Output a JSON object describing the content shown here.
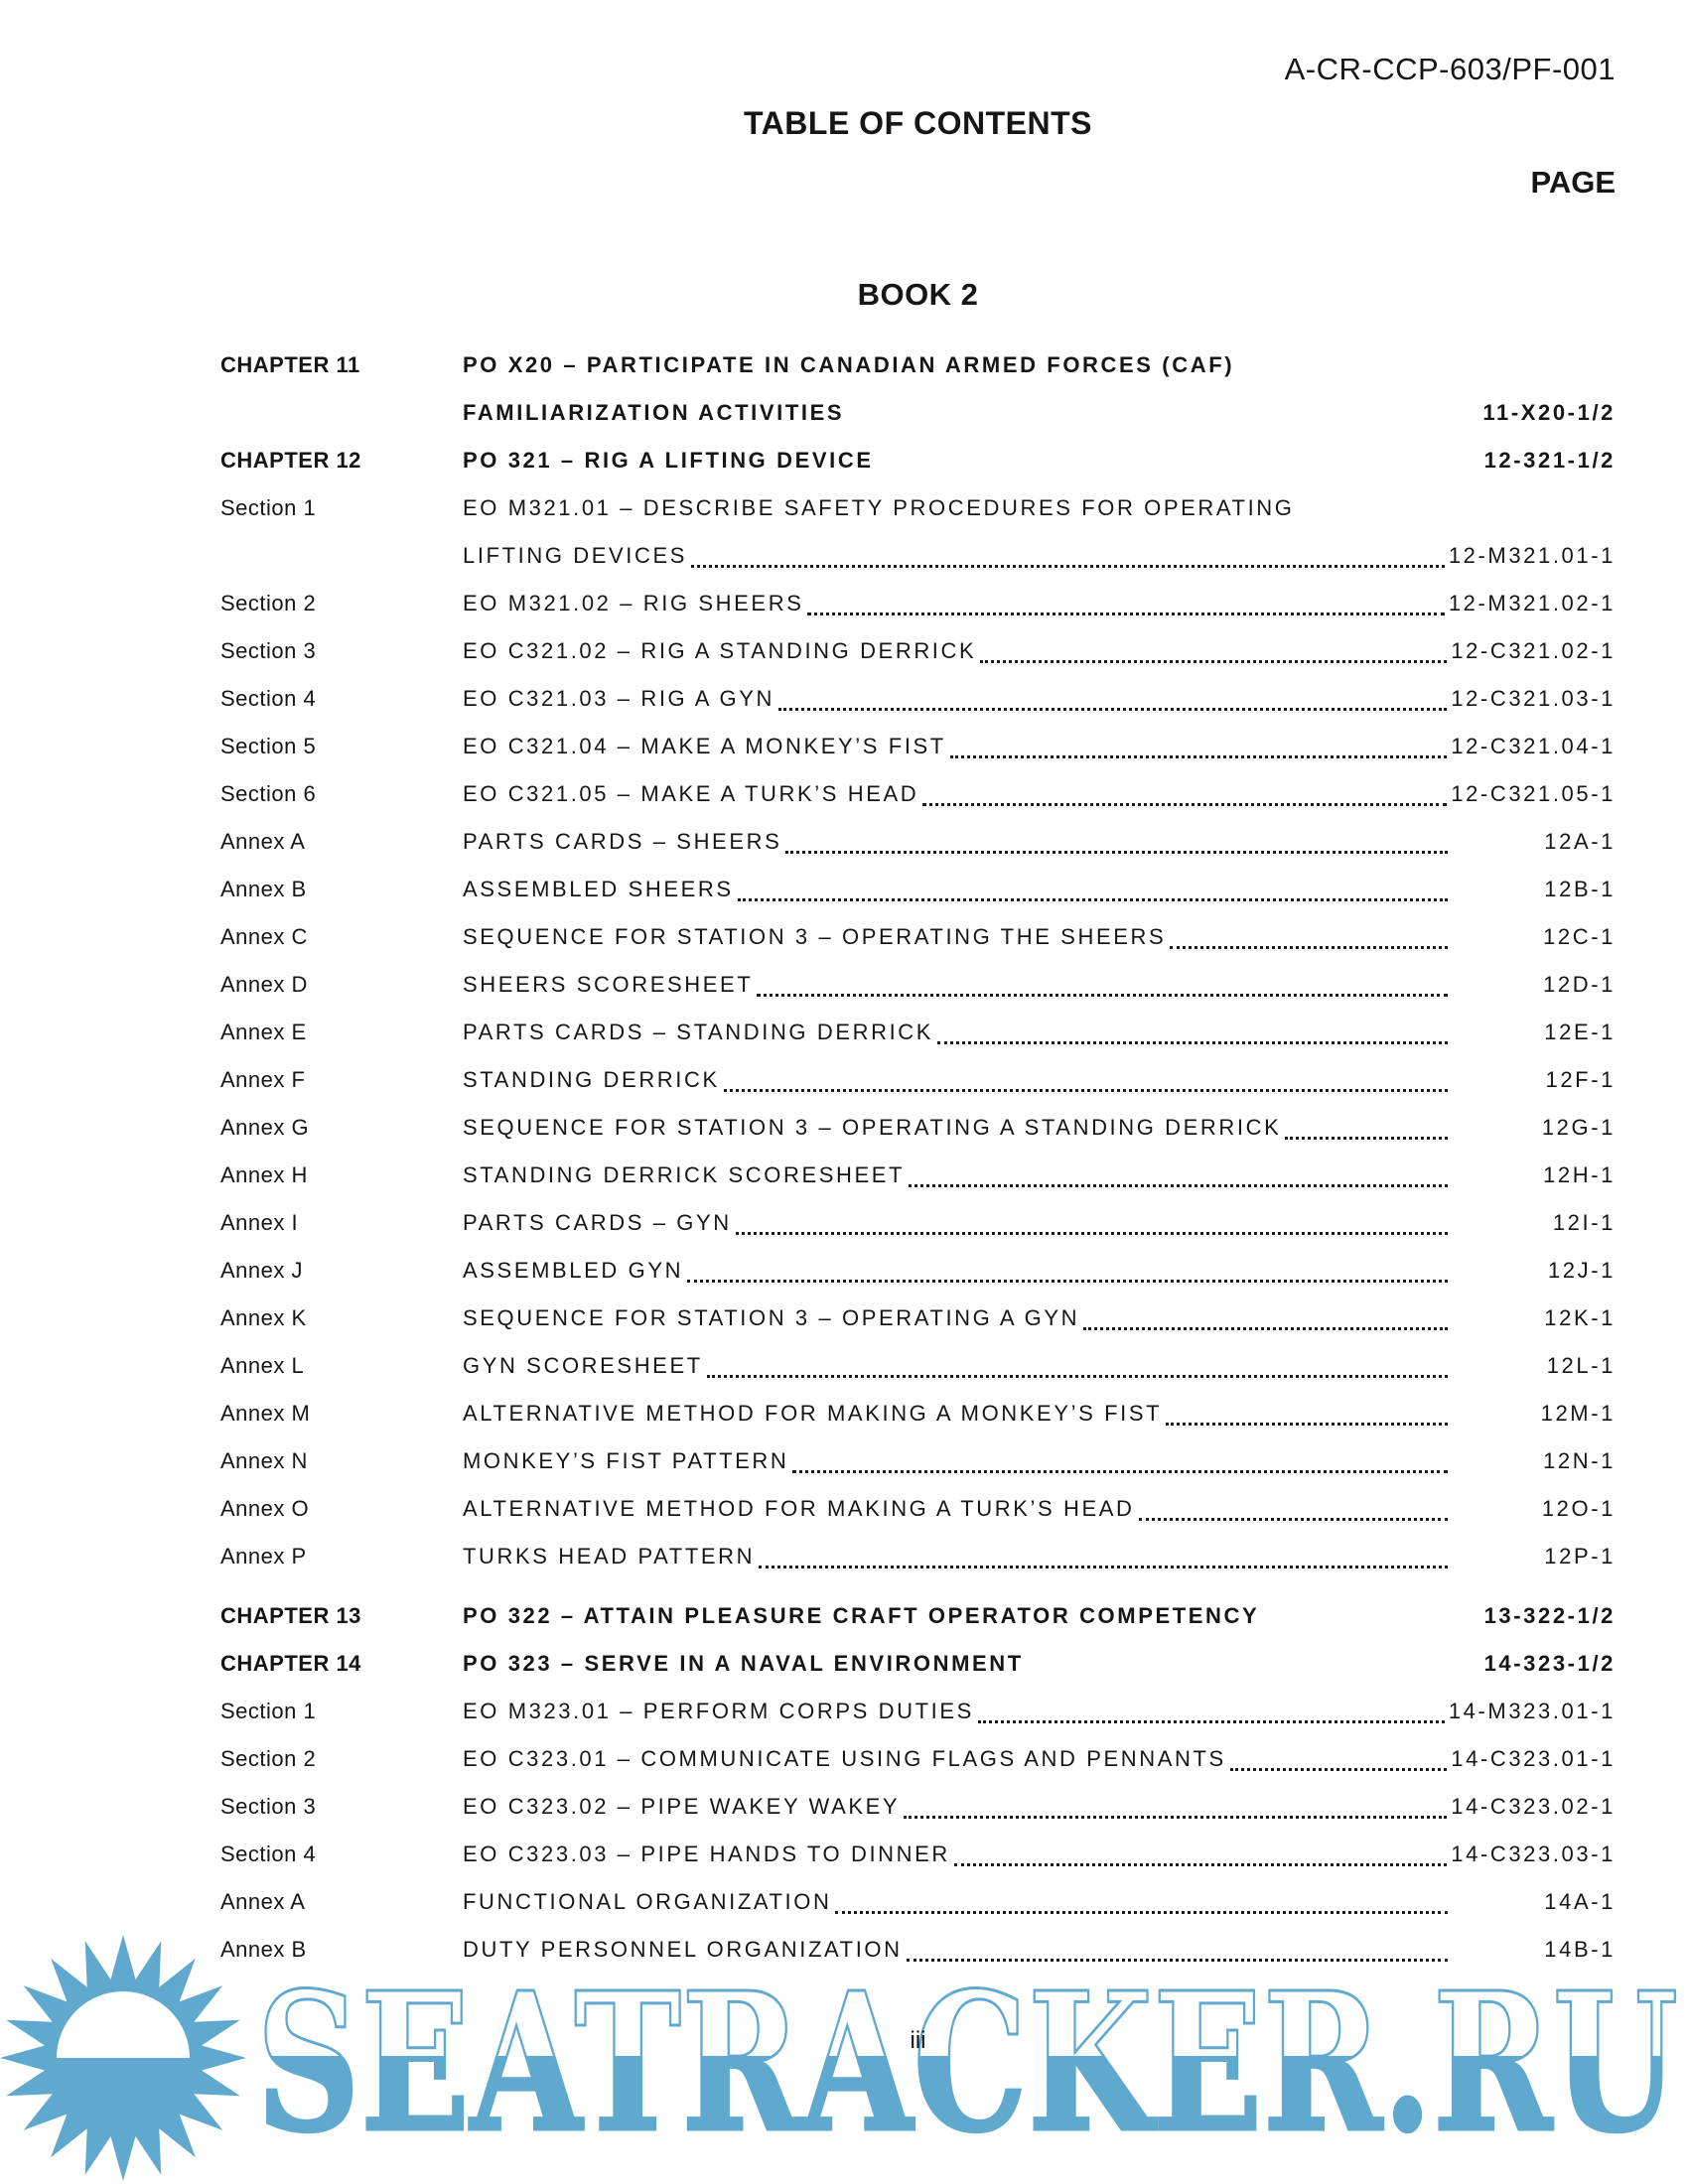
{
  "header": {
    "doc_ref": "A-CR-CCP-603/PF-001",
    "title": "TABLE OF CONTENTS",
    "page_column_label": "PAGE"
  },
  "book_heading": "BOOK 2",
  "toc": {
    "rows": [
      {
        "type": "chapter",
        "label": "CHAPTER 11",
        "lines": [
          "PO X20 – PARTICIPATE IN CANADIAN ARMED FORCES (CAF)",
          "FAMILIARIZATION ACTIVITIES"
        ],
        "page": "11-X20-1/2",
        "leader": false
      },
      {
        "type": "chapter",
        "label": "CHAPTER 12",
        "lines": [
          "PO 321 – RIG A LIFTING DEVICE"
        ],
        "page": "12-321-1/2",
        "leader": false
      },
      {
        "type": "section",
        "label": "Section 1",
        "lines": [
          "EO M321.01 – DESCRIBE SAFETY PROCEDURES FOR OPERATING",
          "LIFTING DEVICES"
        ],
        "page": "12-M321.01-1",
        "leader": true
      },
      {
        "type": "section",
        "label": "Section 2",
        "lines": [
          "EO M321.02 – RIG SHEERS"
        ],
        "page": "12-M321.02-1",
        "leader": true
      },
      {
        "type": "section",
        "label": "Section 3",
        "lines": [
          "EO C321.02 – RIG A STANDING DERRICK"
        ],
        "page": "12-C321.02-1",
        "leader": true
      },
      {
        "type": "section",
        "label": "Section 4",
        "lines": [
          "EO C321.03 – RIG A GYN"
        ],
        "page": "12-C321.03-1",
        "leader": true
      },
      {
        "type": "section",
        "label": "Section 5",
        "lines": [
          "EO C321.04 – MAKE A MONKEY’S FIST"
        ],
        "page": "12-C321.04-1",
        "leader": true
      },
      {
        "type": "section",
        "label": "Section 6",
        "lines": [
          "EO C321.05 – MAKE A TURK’S HEAD"
        ],
        "page": "12-C321.05-1",
        "leader": true
      },
      {
        "type": "annex",
        "label": "Annex A",
        "lines": [
          "PARTS CARDS – SHEERS"
        ],
        "page": "12A-1",
        "leader": true
      },
      {
        "type": "annex",
        "label": "Annex B",
        "lines": [
          "ASSEMBLED SHEERS"
        ],
        "page": "12B-1",
        "leader": true
      },
      {
        "type": "annex",
        "label": "Annex C",
        "lines": [
          "SEQUENCE FOR STATION 3 – OPERATING THE SHEERS"
        ],
        "page": "12C-1",
        "leader": true
      },
      {
        "type": "annex",
        "label": "Annex D",
        "lines": [
          "SHEERS SCORESHEET"
        ],
        "page": "12D-1",
        "leader": true
      },
      {
        "type": "annex",
        "label": "Annex E",
        "lines": [
          "PARTS CARDS – STANDING DERRICK"
        ],
        "page": "12E-1",
        "leader": true
      },
      {
        "type": "annex",
        "label": "Annex F",
        "lines": [
          "STANDING DERRICK"
        ],
        "page": "12F-1",
        "leader": true
      },
      {
        "type": "annex",
        "label": "Annex G",
        "lines": [
          "SEQUENCE FOR STATION 3 – OPERATING A STANDING DERRICK"
        ],
        "page": "12G-1",
        "leader": true
      },
      {
        "type": "annex",
        "label": "Annex H",
        "lines": [
          "STANDING DERRICK SCORESHEET"
        ],
        "page": "12H-1",
        "leader": true
      },
      {
        "type": "annex",
        "label": "Annex I",
        "lines": [
          "PARTS CARDS – GYN"
        ],
        "page": "12I-1",
        "leader": true
      },
      {
        "type": "annex",
        "label": "Annex J",
        "lines": [
          "ASSEMBLED GYN"
        ],
        "page": "12J-1",
        "leader": true
      },
      {
        "type": "annex",
        "label": "Annex K",
        "lines": [
          "SEQUENCE FOR STATION 3 – OPERATING A GYN"
        ],
        "page": "12K-1",
        "leader": true
      },
      {
        "type": "annex",
        "label": "Annex L",
        "lines": [
          "GYN SCORESHEET"
        ],
        "page": "12L-1",
        "leader": true
      },
      {
        "type": "annex",
        "label": "Annex M",
        "lines": [
          "ALTERNATIVE METHOD FOR MAKING A MONKEY’S FIST"
        ],
        "page": "12M-1",
        "leader": true
      },
      {
        "type": "annex",
        "label": "Annex N",
        "lines": [
          "MONKEY’S FIST PATTERN"
        ],
        "page": "12N-1",
        "leader": true
      },
      {
        "type": "annex",
        "label": "Annex O",
        "lines": [
          "ALTERNATIVE METHOD FOR MAKING A TURK’S HEAD"
        ],
        "page": "12O-1",
        "leader": true
      },
      {
        "type": "annex",
        "label": "Annex P",
        "lines": [
          "TURKS HEAD PATTERN"
        ],
        "page": "12P-1",
        "leader": true
      },
      {
        "type": "chapter",
        "label": "CHAPTER 13",
        "lines": [
          "PO 322 – ATTAIN PLEASURE CRAFT OPERATOR COMPETENCY"
        ],
        "page": "13-322-1/2",
        "leader": false
      },
      {
        "type": "chapter",
        "label": "CHAPTER 14",
        "lines": [
          "PO 323 – SERVE IN A NAVAL ENVIRONMENT"
        ],
        "page": "14-323-1/2",
        "leader": false
      },
      {
        "type": "section",
        "label": "Section 1",
        "lines": [
          "EO M323.01 – PERFORM CORPS DUTIES"
        ],
        "page": "14-M323.01-1",
        "leader": true
      },
      {
        "type": "section",
        "label": "Section 2",
        "lines": [
          "EO C323.01 – COMMUNICATE USING FLAGS AND PENNANTS"
        ],
        "page": "14-C323.01-1",
        "leader": true
      },
      {
        "type": "section",
        "label": "Section 3",
        "lines": [
          "EO C323.02 – PIPE WAKEY WAKEY"
        ],
        "page": "14-C323.02-1",
        "leader": true
      },
      {
        "type": "section",
        "label": "Section 4",
        "lines": [
          "EO C323.03 – PIPE HANDS TO DINNER"
        ],
        "page": "14-C323.03-1",
        "leader": true
      },
      {
        "type": "annex",
        "label": "Annex A",
        "lines": [
          "FUNCTIONAL ORGANIZATION"
        ],
        "page": "14A-1",
        "leader": true
      },
      {
        "type": "annex",
        "label": "Annex B",
        "lines": [
          "DUTY PERSONNEL ORGANIZATION"
        ],
        "page": "14B-1",
        "leader": true
      }
    ]
  },
  "footer": {
    "page_number": "iii"
  },
  "watermark": {
    "text": "SEATRACKER.RU",
    "color": "#5fa8ce"
  }
}
